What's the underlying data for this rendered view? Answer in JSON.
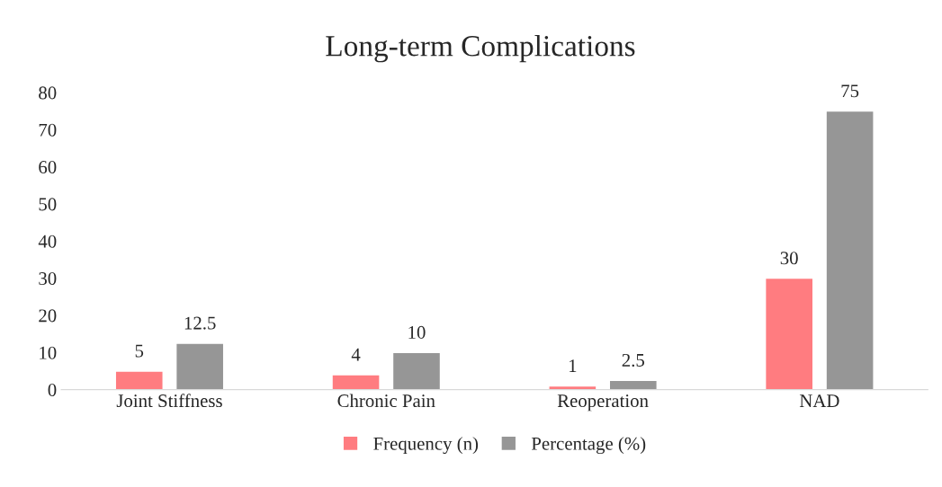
{
  "chart_data": {
    "type": "bar",
    "title": "Long-term Complications",
    "categories": [
      "Joint Stiffness",
      "Chronic Pain",
      "Reoperation",
      "NAD"
    ],
    "series": [
      {
        "name": "Frequency (n)",
        "color": "#ff7c80",
        "values": [
          5,
          4,
          1,
          30
        ]
      },
      {
        "name": "Percentage (%)",
        "color": "#969696",
        "values": [
          12.5,
          10,
          2.5,
          75
        ]
      }
    ],
    "ylim": [
      0,
      80
    ],
    "yticks": [
      0,
      10,
      20,
      30,
      40,
      50,
      60,
      70,
      80
    ],
    "grid": false,
    "legend": "bottom",
    "data_labels": true
  }
}
